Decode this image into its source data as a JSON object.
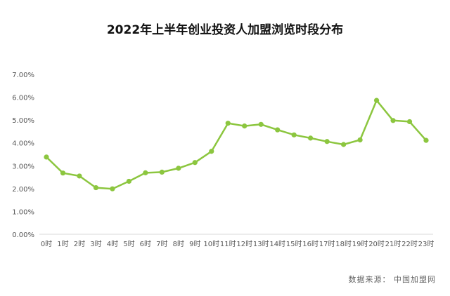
{
  "chart_data": {
    "type": "line",
    "title": "2022年上半年创业投资人加盟浏览时段分布",
    "xlabel": "",
    "ylabel": "",
    "categories": [
      "0时",
      "1时",
      "2时",
      "3时",
      "4时",
      "5时",
      "6时",
      "7时",
      "8时",
      "9时",
      "10时",
      "11时",
      "12时",
      "13时",
      "14时",
      "15时",
      "16时",
      "17时",
      "18时",
      "19时",
      "20时",
      "21时",
      "22时",
      "23时"
    ],
    "series": [
      {
        "values": [
          3.38,
          2.68,
          2.55,
          2.04,
          1.99,
          2.32,
          2.69,
          2.72,
          2.89,
          3.14,
          3.63,
          4.86,
          4.74,
          4.81,
          4.57,
          4.35,
          4.21,
          4.06,
          3.93,
          4.13,
          5.86,
          4.98,
          4.93,
          4.11
        ],
        "color": "#8cc63f"
      }
    ],
    "ylim": [
      0,
      7
    ],
    "yticks": [
      "0.00%",
      "1.00%",
      "2.00%",
      "3.00%",
      "4.00%",
      "5.00%",
      "6.00%",
      "7.00%"
    ],
    "grid": false,
    "legend": "none"
  },
  "source": "数据来源： 中国加盟网"
}
